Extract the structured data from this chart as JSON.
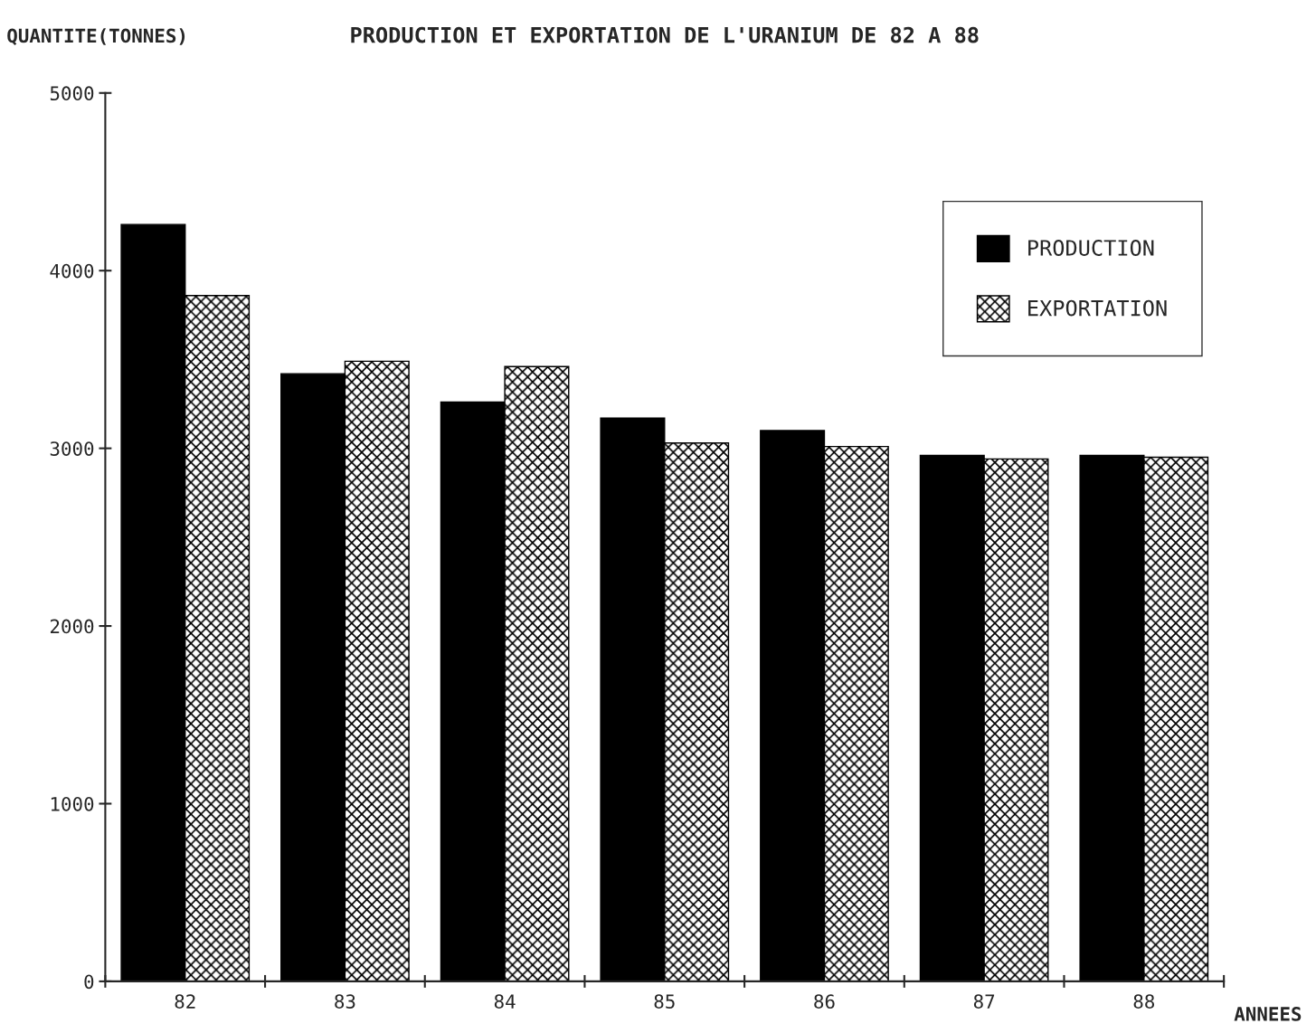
{
  "chart_data": {
    "type": "bar",
    "title": "PRODUCTION ET EXPORTATION DE L'URANIUM DE 82 A 88",
    "xlabel": "ANNEES",
    "ylabel": "QUANTITE(TONNES)",
    "categories": [
      "82",
      "83",
      "84",
      "85",
      "86",
      "87",
      "88"
    ],
    "series": [
      {
        "name": "PRODUCTION",
        "color": "#000000",
        "values": [
          4260,
          3420,
          3260,
          3170,
          3100,
          2960,
          2960
        ]
      },
      {
        "name": "EXPORTATION",
        "color": "#000000",
        "values": [
          3860,
          3490,
          3460,
          3030,
          3010,
          2940,
          2950
        ]
      }
    ],
    "ylim": [
      0,
      5000
    ],
    "yticks": [
      0,
      1000,
      2000,
      3000,
      4000,
      5000
    ],
    "grid": false,
    "legend": "top right"
  }
}
